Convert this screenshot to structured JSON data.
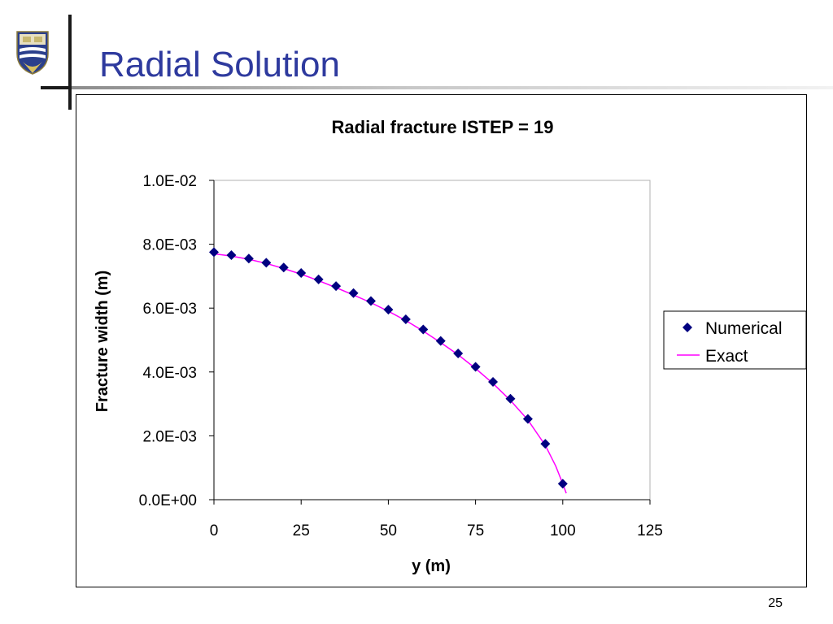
{
  "slide": {
    "title": "Radial Solution",
    "page_number": "25"
  },
  "colors": {
    "title": "#2e3a9e",
    "numerical_marker": "#000080",
    "exact_line": "#ff00ff"
  },
  "icons": {
    "logo": "university-crest-icon"
  },
  "chart_data": {
    "type": "scatter",
    "title": "Radial fracture ISTEP = 19",
    "xlabel": "y (m)",
    "ylabel": "Fracture width (m)",
    "xlim": [
      0,
      125
    ],
    "ylim": [
      0,
      0.01
    ],
    "x_ticks": [
      "0",
      "25",
      "50",
      "75",
      "100",
      "125"
    ],
    "x_tick_values": [
      0,
      25,
      50,
      75,
      100,
      125
    ],
    "y_ticks": [
      "0.0E+00",
      "2.0E-03",
      "4.0E-03",
      "6.0E-03",
      "8.0E-03",
      "1.0E-02"
    ],
    "y_tick_values": [
      0,
      0.002,
      0.004,
      0.006,
      0.008,
      0.01
    ],
    "grid": false,
    "legend_position": "right",
    "series": [
      {
        "name": "Numerical",
        "style": "diamond-markers",
        "x": [
          0,
          5,
          10,
          15,
          20,
          25,
          30,
          35,
          40,
          45,
          50,
          55,
          60,
          65,
          70,
          75,
          80,
          85,
          90,
          95,
          100
        ],
        "y": [
          0.00775,
          0.00766,
          0.00755,
          0.00742,
          0.00727,
          0.0071,
          0.0069,
          0.00669,
          0.00647,
          0.00622,
          0.00595,
          0.00565,
          0.00533,
          0.00497,
          0.00458,
          0.00416,
          0.00369,
          0.00316,
          0.00253,
          0.00175,
          0.0005
        ]
      },
      {
        "name": "Exact",
        "style": "line",
        "x": [
          0,
          5,
          10,
          15,
          20,
          25,
          30,
          35,
          40,
          45,
          50,
          55,
          60,
          65,
          70,
          75,
          80,
          85,
          90,
          95,
          98,
          100,
          101
        ],
        "y": [
          0.0077,
          0.00763,
          0.00753,
          0.0074,
          0.00724,
          0.00706,
          0.00686,
          0.00664,
          0.00641,
          0.00617,
          0.0059,
          0.00561,
          0.00528,
          0.00492,
          0.00454,
          0.00411,
          0.00364,
          0.00311,
          0.0025,
          0.0017,
          0.00105,
          0.0005,
          0.0002
        ]
      }
    ]
  }
}
